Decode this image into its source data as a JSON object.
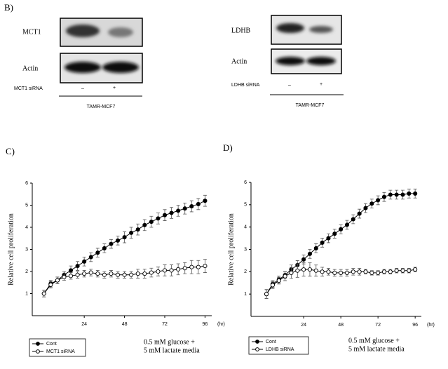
{
  "panel_b": {
    "label": "B)",
    "blots": [
      {
        "protein": "MCT1",
        "loading": "Actin",
        "treatment": "MCT1 siRNA",
        "lanes": [
          "–",
          "+"
        ],
        "cell_line": "TAMR-MCF7"
      },
      {
        "protein": "LDHB",
        "loading": "Actin",
        "treatment": "LDHB siRNA",
        "lanes": [
          "–",
          "+"
        ],
        "cell_line": "TAMR-MCF7"
      }
    ]
  },
  "chart_data": [
    {
      "type": "line",
      "panel": "C)",
      "ylabel": "Relative cell proliferation",
      "xunit": "(hr)",
      "annotation": [
        "0.5 mM glucose +",
        "5 mM lactate media"
      ],
      "xlim": [
        -7,
        100
      ],
      "xticks": [
        24,
        48,
        72,
        96
      ],
      "ylim": [
        0,
        6
      ],
      "yticks": [
        1,
        2,
        3,
        4,
        5,
        6
      ],
      "x": [
        0,
        4,
        8,
        12,
        16,
        20,
        24,
        28,
        32,
        36,
        40,
        44,
        48,
        52,
        56,
        60,
        64,
        68,
        72,
        76,
        80,
        84,
        88,
        92,
        96
      ],
      "series": [
        {
          "name": "Cont",
          "color": "#000000",
          "marker": "filled",
          "values": [
            1.0,
            1.45,
            1.6,
            1.85,
            2.05,
            2.25,
            2.45,
            2.65,
            2.85,
            3.05,
            3.25,
            3.4,
            3.55,
            3.75,
            3.9,
            4.1,
            4.25,
            4.4,
            4.55,
            4.65,
            4.75,
            4.85,
            4.95,
            5.05,
            5.2
          ],
          "errors": [
            0.15,
            0.15,
            0.15,
            0.15,
            0.2,
            0.2,
            0.2,
            0.2,
            0.2,
            0.2,
            0.2,
            0.2,
            0.25,
            0.25,
            0.25,
            0.25,
            0.25,
            0.25,
            0.25,
            0.25,
            0.25,
            0.25,
            0.25,
            0.25,
            0.25
          ]
        },
        {
          "name": "MCT1 siRNA",
          "color": "#000000",
          "marker": "open",
          "values": [
            1.0,
            1.4,
            1.6,
            1.75,
            1.8,
            1.85,
            1.9,
            1.95,
            1.9,
            1.85,
            1.9,
            1.85,
            1.85,
            1.85,
            1.9,
            1.9,
            1.95,
            2.0,
            2.05,
            2.05,
            2.1,
            2.15,
            2.2,
            2.2,
            2.25
          ],
          "errors": [
            0.15,
            0.15,
            0.15,
            0.15,
            0.15,
            0.15,
            0.15,
            0.15,
            0.15,
            0.15,
            0.15,
            0.15,
            0.15,
            0.15,
            0.2,
            0.2,
            0.2,
            0.2,
            0.25,
            0.25,
            0.25,
            0.25,
            0.3,
            0.3,
            0.3
          ]
        }
      ]
    },
    {
      "type": "line",
      "panel": "D)",
      "ylabel": "Relative cell proliferation",
      "xunit": "(hr)",
      "annotation": [
        "0.5 mM glucose +",
        "5 mM lactate media"
      ],
      "xlim": [
        -10,
        100
      ],
      "xticks": [
        24,
        48,
        72,
        96
      ],
      "ylim": [
        0,
        6
      ],
      "yticks": [
        1,
        2,
        3,
        4,
        5,
        6
      ],
      "x": [
        0,
        4,
        8,
        12,
        16,
        20,
        24,
        28,
        32,
        36,
        40,
        44,
        48,
        52,
        56,
        60,
        64,
        68,
        72,
        76,
        80,
        84,
        88,
        92,
        96
      ],
      "series": [
        {
          "name": "Cont",
          "color": "#000000",
          "marker": "filled",
          "values": [
            1.0,
            1.45,
            1.65,
            1.85,
            2.1,
            2.3,
            2.55,
            2.8,
            3.05,
            3.3,
            3.5,
            3.7,
            3.9,
            4.1,
            4.35,
            4.6,
            4.85,
            5.05,
            5.2,
            5.35,
            5.45,
            5.45,
            5.45,
            5.5,
            5.5
          ],
          "errors": [
            0.2,
            0.15,
            0.15,
            0.15,
            0.2,
            0.2,
            0.2,
            0.2,
            0.2,
            0.2,
            0.2,
            0.2,
            0.2,
            0.2,
            0.2,
            0.2,
            0.2,
            0.2,
            0.2,
            0.2,
            0.2,
            0.2,
            0.2,
            0.2,
            0.2
          ]
        },
        {
          "name": "LDHB siRNA",
          "color": "#000000",
          "marker": "open",
          "values": [
            1.0,
            1.4,
            1.6,
            1.8,
            1.95,
            2.05,
            2.1,
            2.1,
            2.05,
            2.0,
            2.0,
            1.95,
            1.95,
            1.95,
            2.0,
            2.0,
            2.0,
            1.95,
            1.95,
            2.0,
            2.0,
            2.05,
            2.05,
            2.05,
            2.1
          ],
          "errors": [
            0.2,
            0.15,
            0.15,
            0.2,
            0.25,
            0.3,
            0.3,
            0.3,
            0.25,
            0.2,
            0.15,
            0.15,
            0.15,
            0.15,
            0.15,
            0.15,
            0.1,
            0.1,
            0.1,
            0.1,
            0.1,
            0.1,
            0.1,
            0.1,
            0.1
          ]
        }
      ]
    }
  ]
}
